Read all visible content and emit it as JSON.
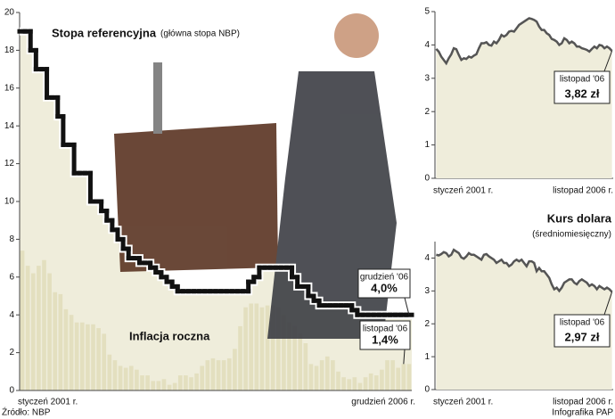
{
  "chart_data": [
    {
      "type": "combo",
      "categories": [
        "styczeń 2001 r.",
        null,
        null,
        null,
        null,
        null,
        null,
        null,
        null,
        null,
        null,
        null,
        null,
        null,
        null,
        null,
        null,
        null,
        null,
        null,
        null,
        null,
        null,
        null,
        null,
        null,
        null,
        null,
        null,
        null,
        null,
        null,
        null,
        null,
        null,
        null,
        null,
        null,
        null,
        null,
        null,
        null,
        null,
        null,
        null,
        null,
        null,
        null,
        null,
        null,
        null,
        null,
        null,
        null,
        null,
        null,
        null,
        null,
        null,
        null,
        null,
        null,
        null,
        null,
        null,
        null,
        null,
        null,
        null,
        null,
        null,
        "grudzień 2006 r."
      ],
      "series": [
        {
          "name": "Stopa referencyjna",
          "note": "(główna stopa NBP)",
          "kind": "step",
          "color": "#111111",
          "callout": "grudzień '06",
          "values": [
            19,
            19,
            18,
            17,
            17,
            15.5,
            15.5,
            14.5,
            13,
            13,
            11.5,
            11.5,
            11.5,
            10,
            10,
            9.5,
            9,
            8.5,
            8,
            7.5,
            7,
            7,
            6.75,
            6.75,
            6.5,
            6.25,
            6,
            5.75,
            5.5,
            5.25,
            5.25,
            5.25,
            5.25,
            5.25,
            5.25,
            5.25,
            5.25,
            5.25,
            5.25,
            5.25,
            5.25,
            5.25,
            5.75,
            6,
            6.5,
            6.5,
            6.5,
            6.5,
            6.5,
            6.5,
            6,
            5.5,
            5.5,
            5,
            4.75,
            4.5,
            4.5,
            4.5,
            4.5,
            4.5,
            4.5,
            4.25,
            4,
            4,
            4,
            4,
            4,
            4,
            4,
            4,
            4,
            4
          ],
          "value_labels": [
            null,
            null,
            null,
            null,
            null,
            null,
            null,
            null,
            null,
            null,
            null,
            null,
            null,
            null,
            null,
            null,
            null,
            null,
            null,
            null,
            null,
            null,
            null,
            null,
            null,
            null,
            null,
            null,
            null,
            null,
            null,
            null,
            null,
            null,
            null,
            null,
            null,
            null,
            null,
            null,
            null,
            null,
            null,
            null,
            null,
            null,
            null,
            null,
            null,
            null,
            null,
            null,
            null,
            null,
            null,
            null,
            null,
            null,
            null,
            null,
            null,
            null,
            null,
            null,
            null,
            null,
            null,
            null,
            null,
            null,
            null,
            "4,0%"
          ]
        },
        {
          "name": "Inflacja roczna",
          "kind": "bar",
          "color": "#e3dfbf",
          "callout": "listopad '06",
          "values": [
            7.4,
            6.6,
            6.2,
            6.6,
            6.9,
            6.2,
            5.2,
            5.1,
            4.3,
            4.0,
            3.6,
            3.6,
            3.5,
            3.5,
            3.3,
            3.0,
            1.9,
            1.6,
            1.3,
            1.2,
            1.3,
            1.1,
            0.8,
            0.8,
            0.5,
            0.5,
            0.6,
            0.3,
            0.4,
            0.8,
            0.8,
            0.7,
            0.9,
            1.3,
            1.6,
            1.7,
            1.6,
            1.6,
            1.7,
            2.2,
            3.4,
            4.4,
            4.6,
            4.6,
            4.4,
            4.5,
            4.5,
            4.4,
            4.0,
            3.6,
            3.4,
            3.0,
            2.5,
            1.4,
            1.3,
            1.6,
            1.8,
            1.6,
            1.0,
            0.7,
            0.6,
            0.7,
            0.4,
            0.7,
            0.9,
            0.8,
            1.1,
            1.6,
            1.6,
            1.2,
            1.4,
            1.4
          ],
          "value_labels": [
            null,
            null,
            null,
            null,
            null,
            null,
            null,
            null,
            null,
            null,
            null,
            null,
            null,
            null,
            null,
            null,
            null,
            null,
            null,
            null,
            null,
            null,
            null,
            null,
            null,
            null,
            null,
            null,
            null,
            null,
            null,
            null,
            null,
            null,
            null,
            null,
            null,
            null,
            null,
            null,
            null,
            null,
            null,
            null,
            null,
            null,
            null,
            null,
            null,
            null,
            null,
            null,
            null,
            null,
            null,
            null,
            null,
            null,
            null,
            null,
            null,
            null,
            null,
            null,
            null,
            null,
            null,
            null,
            null,
            null,
            "1,4%",
            null
          ]
        }
      ],
      "fill": "#efeddb",
      "ylim": [
        0,
        20
      ],
      "yticks": [
        0,
        2,
        4,
        6,
        8,
        10,
        12,
        14,
        16,
        18,
        20
      ],
      "source": "Źródło: NBP",
      "credit": "Infografika PAP"
    },
    {
      "type": "line",
      "categories": [
        "styczeń 2001 r.",
        null,
        null,
        null,
        null,
        null,
        null,
        null,
        null,
        null,
        null,
        null,
        null,
        null,
        null,
        null,
        null,
        null,
        null,
        null,
        null,
        null,
        null,
        null,
        null,
        null,
        null,
        null,
        null,
        null,
        null,
        null,
        null,
        null,
        null,
        null,
        null,
        null,
        null,
        null,
        null,
        null,
        null,
        null,
        null,
        null,
        null,
        null,
        null,
        null,
        null,
        null,
        null,
        null,
        null,
        null,
        null,
        null,
        null,
        null,
        null,
        null,
        null,
        null,
        null,
        null,
        null,
        null,
        null,
        null,
        "listopad 2006 r."
      ],
      "series": [
        {
          "color": "#555555",
          "callout": "listopad '06",
          "values": [
            3.88,
            3.8,
            3.65,
            3.55,
            3.45,
            3.6,
            3.72,
            3.9,
            3.87,
            3.7,
            3.55,
            3.6,
            3.58,
            3.65,
            3.62,
            3.68,
            3.72,
            3.9,
            4.05,
            4.05,
            4.08,
            4.0,
            3.98,
            4.1,
            4.05,
            4.15,
            4.3,
            4.25,
            4.3,
            4.4,
            4.42,
            4.4,
            4.5,
            4.6,
            4.65,
            4.7,
            4.75,
            4.8,
            4.78,
            4.75,
            4.7,
            4.55,
            4.45,
            4.45,
            4.35,
            4.3,
            4.18,
            4.15,
            4.1,
            4.0,
            4.05,
            4.2,
            4.15,
            4.05,
            4.1,
            4.05,
            3.95,
            3.95,
            3.9,
            3.88,
            3.85,
            3.8,
            3.88,
            3.95,
            3.9,
            4.0,
            3.98,
            3.9,
            3.95,
            3.9,
            3.82
          ],
          "value_labels": [
            null,
            null,
            null,
            null,
            null,
            null,
            null,
            null,
            null,
            null,
            null,
            null,
            null,
            null,
            null,
            null,
            null,
            null,
            null,
            null,
            null,
            null,
            null,
            null,
            null,
            null,
            null,
            null,
            null,
            null,
            null,
            null,
            null,
            null,
            null,
            null,
            null,
            null,
            null,
            null,
            null,
            null,
            null,
            null,
            null,
            null,
            null,
            null,
            null,
            null,
            null,
            null,
            null,
            null,
            null,
            null,
            null,
            null,
            null,
            null,
            null,
            null,
            null,
            null,
            null,
            null,
            null,
            null,
            null,
            null,
            "3,82 zł"
          ]
        }
      ],
      "fill": "#efeddb",
      "ylim": [
        0,
        5
      ],
      "yticks": [
        0,
        1,
        2,
        3,
        4,
        5
      ]
    },
    {
      "type": "line",
      "title": "Kurs dolara",
      "subtitle": "(średniomiesięczny)",
      "categories": [
        "styczeń 2001 r.",
        null,
        null,
        null,
        null,
        null,
        null,
        null,
        null,
        null,
        null,
        null,
        null,
        null,
        null,
        null,
        null,
        null,
        null,
        null,
        null,
        null,
        null,
        null,
        null,
        null,
        null,
        null,
        null,
        null,
        null,
        null,
        null,
        null,
        null,
        null,
        null,
        null,
        null,
        null,
        null,
        null,
        null,
        null,
        null,
        null,
        null,
        null,
        null,
        null,
        null,
        null,
        null,
        null,
        null,
        null,
        null,
        null,
        null,
        null,
        null,
        null,
        null,
        null,
        null,
        null,
        null,
        null,
        null,
        null,
        "listopad 2006 r."
      ],
      "series": [
        {
          "color": "#555555",
          "callout": "listopad '06",
          "values": [
            4.1,
            4.08,
            4.12,
            4.18,
            4.15,
            4.05,
            4.1,
            4.25,
            4.2,
            4.15,
            4.02,
            3.98,
            4.05,
            4.15,
            4.1,
            4.1,
            4.05,
            4.0,
            3.95,
            4.1,
            4.12,
            4.05,
            4.0,
            3.95,
            3.85,
            3.9,
            3.95,
            3.85,
            3.85,
            3.75,
            3.8,
            3.9,
            3.95,
            3.9,
            3.95,
            3.85,
            3.75,
            3.9,
            3.9,
            3.85,
            3.6,
            3.7,
            3.6,
            3.6,
            3.5,
            3.4,
            3.2,
            3.05,
            3.1,
            3.0,
            3.1,
            3.25,
            3.3,
            3.35,
            3.35,
            3.25,
            3.2,
            3.3,
            3.35,
            3.3,
            3.25,
            3.15,
            3.2,
            3.15,
            3.05,
            3.15,
            3.1,
            3.05,
            3.1,
            3.05,
            2.97
          ],
          "value_labels": [
            null,
            null,
            null,
            null,
            null,
            null,
            null,
            null,
            null,
            null,
            null,
            null,
            null,
            null,
            null,
            null,
            null,
            null,
            null,
            null,
            null,
            null,
            null,
            null,
            null,
            null,
            null,
            null,
            null,
            null,
            null,
            null,
            null,
            null,
            null,
            null,
            null,
            null,
            null,
            null,
            null,
            null,
            null,
            null,
            null,
            null,
            null,
            null,
            null,
            null,
            null,
            null,
            null,
            null,
            null,
            null,
            null,
            null,
            null,
            null,
            null,
            null,
            null,
            null,
            null,
            null,
            null,
            null,
            null,
            null,
            "2,97 zł"
          ]
        }
      ],
      "fill": "#efeddb",
      "ylim": [
        0,
        4.5
      ],
      "yticks": [
        0,
        1,
        2,
        3,
        4
      ]
    }
  ]
}
